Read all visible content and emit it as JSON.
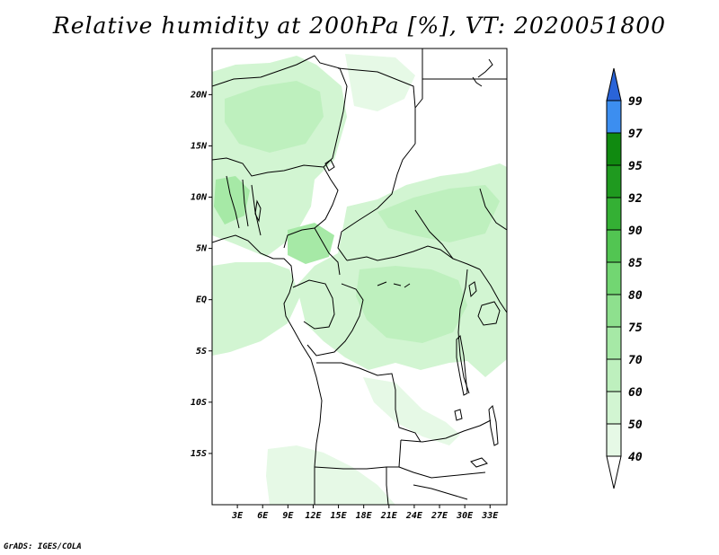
{
  "title": "Relative humidity at 200hPa [%], VT: 2020051800",
  "credit": "GrADS: IGES/COLA",
  "map": {
    "lon_range": [
      0,
      35
    ],
    "lat_range": [
      -20,
      24.5
    ],
    "lon_ticks": [
      {
        "value": 3,
        "label": "3E"
      },
      {
        "value": 6,
        "label": "6E"
      },
      {
        "value": 9,
        "label": "9E"
      },
      {
        "value": 12,
        "label": "12E"
      },
      {
        "value": 15,
        "label": "15E"
      },
      {
        "value": 18,
        "label": "18E"
      },
      {
        "value": 21,
        "label": "21E"
      },
      {
        "value": 24,
        "label": "24E"
      },
      {
        "value": 27,
        "label": "27E"
      },
      {
        "value": 30,
        "label": "30E"
      },
      {
        "value": 33,
        "label": "33E"
      }
    ],
    "lat_ticks": [
      {
        "value": 20,
        "label": "20N"
      },
      {
        "value": 15,
        "label": "15N"
      },
      {
        "value": 10,
        "label": "10N"
      },
      {
        "value": 5,
        "label": "5N"
      },
      {
        "value": 0,
        "label": "EQ"
      },
      {
        "value": -5,
        "label": "5S"
      },
      {
        "value": -10,
        "label": "10S"
      },
      {
        "value": -15,
        "label": "15S"
      }
    ]
  },
  "colorbar": {
    "levels": [
      {
        "value": "40",
        "color": "#e6f9e6"
      },
      {
        "value": "50",
        "color": "#d2f5d2"
      },
      {
        "value": "60",
        "color": "#bef0be"
      },
      {
        "value": "70",
        "color": "#a6e9a6"
      },
      {
        "value": "75",
        "color": "#8ee08e"
      },
      {
        "value": "80",
        "color": "#72d672"
      },
      {
        "value": "85",
        "color": "#52c552"
      },
      {
        "value": "90",
        "color": "#34b034"
      },
      {
        "value": "92",
        "color": "#1f9a1f"
      },
      {
        "value": "95",
        "color": "#108a10"
      },
      {
        "value": "97",
        "color": "#3c8ef0"
      },
      {
        "value": "99",
        "color": "#1e6ee6"
      }
    ],
    "top_color": "#2a64d8",
    "bottom_color": "#ffffff"
  }
}
